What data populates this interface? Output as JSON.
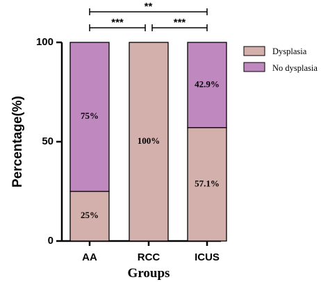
{
  "chart_data": {
    "type": "bar",
    "stacked": true,
    "categories": [
      "AA",
      "RCC",
      "ICUS"
    ],
    "series": [
      {
        "name": "Dysplasia",
        "values": [
          25,
          100,
          57.1
        ],
        "labels": [
          "25%",
          "100%",
          "57.1%"
        ],
        "color": "#d4b0ac"
      },
      {
        "name": "No dysplasia",
        "values": [
          75,
          0,
          42.9
        ],
        "labels": [
          "75%",
          "",
          "42.9%"
        ],
        "color": "#bf89bf"
      }
    ],
    "xlabel": "Groups",
    "ylabel": "Percentage(%)",
    "ylim": [
      0,
      100
    ],
    "yticks": [
      0,
      50,
      100
    ],
    "legend_position": "right",
    "grid": false,
    "significance": [
      {
        "from": "AA",
        "to": "ICUS",
        "label": "**"
      },
      {
        "from": "AA",
        "to": "RCC",
        "label": "***"
      },
      {
        "from": "RCC",
        "to": "ICUS",
        "label": "***"
      }
    ]
  }
}
